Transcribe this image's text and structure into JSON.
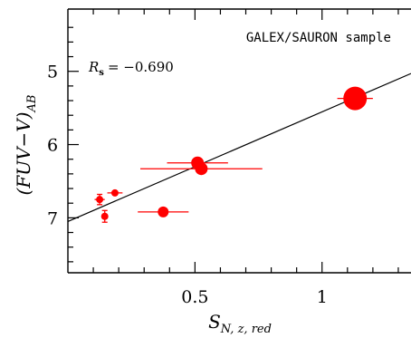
{
  "chart_data": {
    "type": "scatter",
    "annotation": "GALEX/SAURON sample",
    "rs_label": "R",
    "rs_sub": "s",
    "rs_value": "= −0.690",
    "ylabel_main": "(FUV−V)",
    "ylabel_sub": "AB",
    "xlabel_main": "S",
    "xlabel_sub": "N, z, red",
    "xlim": [
      0.0,
      1.35
    ],
    "ylim": [
      7.75,
      4.15
    ],
    "y_inverted": true,
    "x_ticks": [
      0.5,
      1.0
    ],
    "x_tick_labels": [
      "0.5",
      "1"
    ],
    "y_ticks": [
      5,
      6,
      7
    ],
    "y_tick_labels": [
      "5",
      "6",
      "7"
    ],
    "marker_color": "#ff0000",
    "fit_line": {
      "x": [
        0.0,
        1.35
      ],
      "y": [
        7.05,
        5.03
      ]
    },
    "points": [
      {
        "x": 1.13,
        "y": 5.37,
        "xerr": 0.07,
        "yerr": 0.0,
        "size": 13
      },
      {
        "x": 0.51,
        "y": 6.25,
        "xerr": 0.12,
        "yerr": 0.0,
        "size": 7
      },
      {
        "x": 0.525,
        "y": 6.33,
        "xerr": 0.24,
        "yerr": 0.0,
        "size": 7
      },
      {
        "x": 0.375,
        "y": 6.92,
        "xerr": 0.1,
        "yerr": 0.0,
        "size": 6
      },
      {
        "x": 0.185,
        "y": 6.66,
        "xerr": 0.03,
        "yerr": 0.0,
        "size": 4
      },
      {
        "x": 0.125,
        "y": 6.75,
        "xerr": 0.02,
        "yerr": 0.07,
        "size": 4
      },
      {
        "x": 0.145,
        "y": 6.98,
        "xerr": 0.0,
        "yerr": 0.08,
        "size": 4
      }
    ]
  }
}
